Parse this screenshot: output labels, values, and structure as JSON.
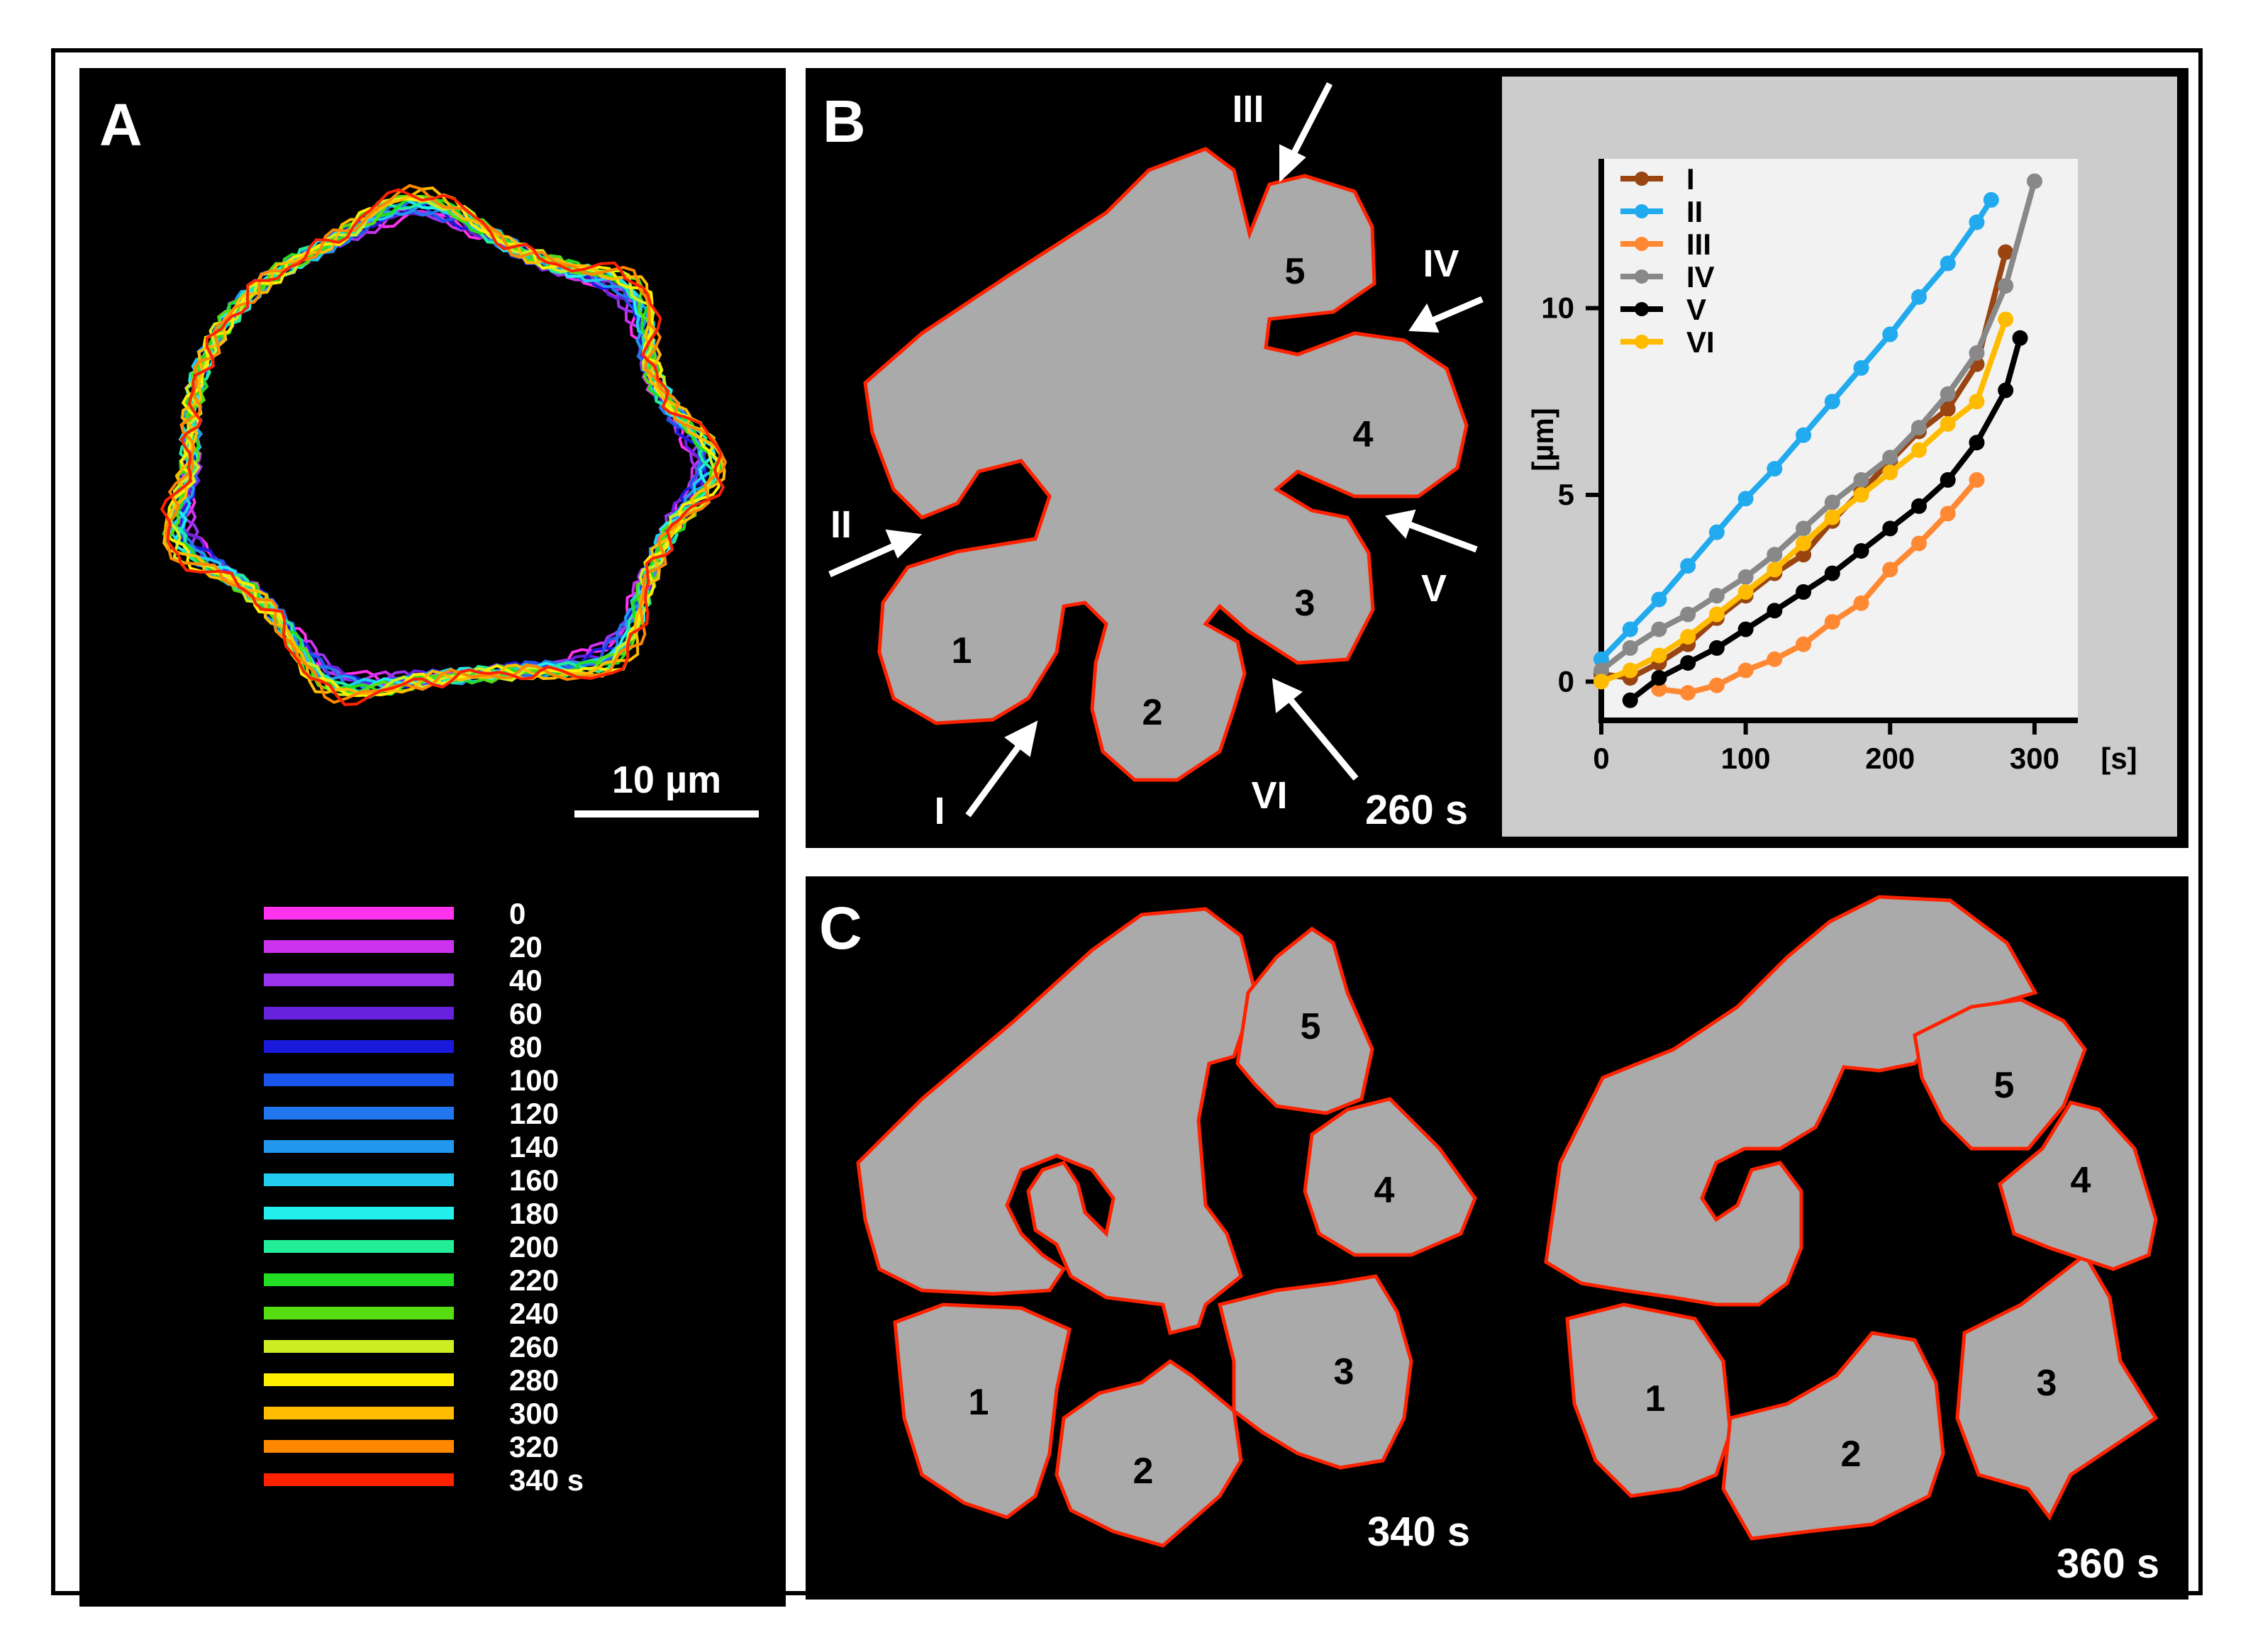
{
  "panels": {
    "a": {
      "label": "A",
      "scale_bar": "10 µm",
      "legend": {
        "entries": [
          {
            "label": "0",
            "color": "#ff33ee"
          },
          {
            "label": "20",
            "color": "#cc33ee"
          },
          {
            "label": "40",
            "color": "#9933ee"
          },
          {
            "label": "60",
            "color": "#6622dd"
          },
          {
            "label": "80",
            "color": "#1a1add"
          },
          {
            "label": "100",
            "color": "#1a55ee"
          },
          {
            "label": "120",
            "color": "#2277ee"
          },
          {
            "label": "140",
            "color": "#2299ee"
          },
          {
            "label": "160",
            "color": "#22ccee"
          },
          {
            "label": "180",
            "color": "#22eeee"
          },
          {
            "label": "200",
            "color": "#22ee99"
          },
          {
            "label": "220",
            "color": "#22dd22"
          },
          {
            "label": "240",
            "color": "#55dd11"
          },
          {
            "label": "260",
            "color": "#ccee22"
          },
          {
            "label": "280",
            "color": "#ffee00"
          },
          {
            "label": "300",
            "color": "#ffbb00"
          },
          {
            "label": "320",
            "color": "#ff8800"
          },
          {
            "label": "340 s",
            "color": "#ff2200"
          }
        ]
      }
    },
    "b": {
      "label": "B",
      "time": "260 s",
      "lobes": [
        "1",
        "2",
        "3",
        "4",
        "5"
      ],
      "arrows": [
        "I",
        "II",
        "III",
        "IV",
        "V",
        "VI"
      ]
    },
    "c": {
      "label": "C",
      "left_time": "340 s",
      "right_time": "360 s",
      "lobes": [
        "1",
        "2",
        "3",
        "4",
        "5"
      ]
    }
  },
  "colors": {
    "panel_bg": "#000000",
    "cell_fill": "#aaaaaa",
    "outline": "#ff2200",
    "inset_bg": "#cccccc",
    "plot_bg": "#f2f2f2"
  },
  "chart_data": {
    "type": "line",
    "xlabel": "[s]",
    "ylabel": "[µm]",
    "xlim": [
      0,
      330
    ],
    "ylim": [
      -1,
      14
    ],
    "xticks": [
      0,
      100,
      200,
      300
    ],
    "yticks": [
      0,
      5,
      10
    ],
    "legend_position": "top-left",
    "series": [
      {
        "name": "I",
        "color": "#994411",
        "x": [
          0,
          20,
          40,
          60,
          80,
          100,
          120,
          140,
          160,
          180,
          200,
          220,
          240,
          260,
          280
        ],
        "y": [
          0.2,
          0.1,
          0.5,
          1.0,
          1.7,
          2.3,
          2.9,
          3.4,
          4.3,
          5.1,
          5.9,
          6.7,
          7.3,
          8.5,
          11.5
        ]
      },
      {
        "name": "II",
        "color": "#22aaee",
        "x": [
          0,
          20,
          40,
          60,
          80,
          100,
          120,
          140,
          160,
          180,
          200,
          220,
          240,
          260,
          270
        ],
        "y": [
          0.6,
          1.4,
          2.2,
          3.1,
          4.0,
          4.9,
          5.7,
          6.6,
          7.5,
          8.4,
          9.3,
          10.3,
          11.2,
          12.3,
          12.9
        ]
      },
      {
        "name": "III",
        "color": "#ff8833",
        "x": [
          40,
          60,
          80,
          100,
          120,
          140,
          160,
          180,
          200,
          220,
          240,
          260
        ],
        "y": [
          -0.2,
          -0.3,
          -0.1,
          0.3,
          0.6,
          1.0,
          1.6,
          2.1,
          3.0,
          3.7,
          4.5,
          5.4
        ]
      },
      {
        "name": "IV",
        "color": "#888888",
        "x": [
          0,
          20,
          40,
          60,
          80,
          100,
          120,
          140,
          160,
          180,
          200,
          220,
          240,
          260,
          280,
          300
        ],
        "y": [
          0.3,
          0.9,
          1.4,
          1.8,
          2.3,
          2.8,
          3.4,
          4.1,
          4.8,
          5.4,
          6.0,
          6.8,
          7.7,
          8.8,
          10.6,
          13.4
        ]
      },
      {
        "name": "V",
        "color": "#000000",
        "x": [
          20,
          40,
          60,
          80,
          100,
          120,
          140,
          160,
          180,
          200,
          220,
          240,
          260,
          280,
          290
        ],
        "y": [
          -0.5,
          0.1,
          0.5,
          0.9,
          1.4,
          1.9,
          2.4,
          2.9,
          3.5,
          4.1,
          4.7,
          5.4,
          6.4,
          7.8,
          9.2
        ]
      },
      {
        "name": "VI",
        "color": "#ffbb00",
        "x": [
          0,
          20,
          40,
          60,
          80,
          100,
          120,
          140,
          160,
          180,
          200,
          220,
          240,
          260,
          280
        ],
        "y": [
          0.0,
          0.3,
          0.7,
          1.2,
          1.8,
          2.4,
          3.0,
          3.7,
          4.4,
          5.0,
          5.6,
          6.2,
          6.9,
          7.5,
          9.7
        ]
      }
    ]
  }
}
